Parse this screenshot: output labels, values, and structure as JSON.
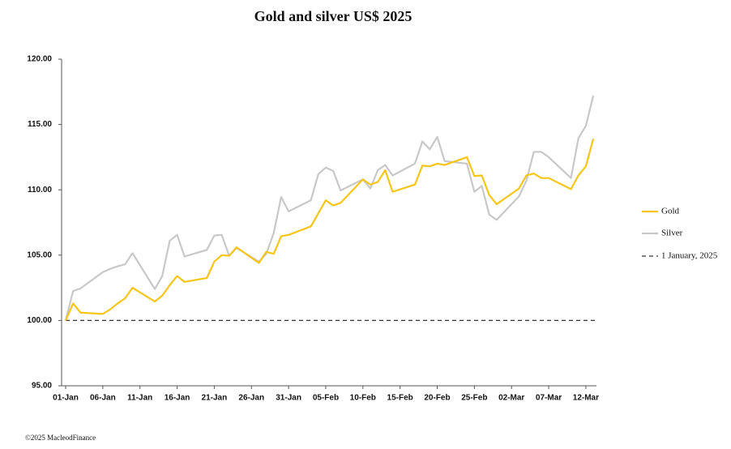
{
  "chart_data": {
    "type": "line",
    "title": "Gold and silver  US$ 2025",
    "footer": "©2025 MacleodFinance",
    "x": [
      0,
      1,
      2,
      5,
      6,
      7,
      8,
      9,
      12,
      13,
      14,
      15,
      16,
      19,
      20,
      21,
      22,
      23,
      26,
      27,
      28,
      29,
      30,
      33,
      34,
      35,
      36,
      37,
      40,
      41,
      42,
      43,
      44,
      47,
      48,
      49,
      50,
      51,
      54,
      55,
      56,
      57,
      58,
      61,
      62,
      63,
      64,
      65,
      68,
      69,
      70,
      71
    ],
    "series": [
      {
        "name": "Gold",
        "color": "#f5c518",
        "values": [
          100,
          101.3,
          100.6,
          100.5,
          100.85,
          101.3,
          101.7,
          102.5,
          101.45,
          101.9,
          102.7,
          103.4,
          102.95,
          103.25,
          104.5,
          105.0,
          104.95,
          105.6,
          104.4,
          105.25,
          105.1,
          106.45,
          106.55,
          107.2,
          108.2,
          109.2,
          108.8,
          109.0,
          110.8,
          110.4,
          110.6,
          111.5,
          109.85,
          110.4,
          111.85,
          111.8,
          112.0,
          111.9,
          112.5,
          111.05,
          111.1,
          109.6,
          108.9,
          110.1,
          111.1,
          111.25,
          110.9,
          110.9,
          110.05,
          111.1,
          111.8,
          113.9
        ]
      },
      {
        "name": "Silver",
        "color": "#c8c8c8",
        "values": [
          100,
          102.25,
          102.45,
          103.7,
          103.95,
          104.15,
          104.3,
          105.15,
          102.4,
          103.4,
          106.1,
          106.55,
          104.9,
          105.4,
          106.5,
          106.55,
          104.95,
          105.55,
          104.5,
          105.1,
          106.7,
          109.45,
          108.35,
          109.2,
          111.2,
          111.7,
          111.45,
          109.95,
          110.8,
          110.1,
          111.5,
          111.9,
          111.1,
          112.0,
          113.7,
          113.1,
          114.05,
          112.2,
          112.0,
          109.85,
          110.3,
          108.1,
          107.7,
          109.5,
          110.7,
          112.9,
          112.9,
          112.5,
          110.9,
          113.95,
          114.9,
          117.2
        ]
      }
    ],
    "reference": {
      "name": "1 January, 2025",
      "value": 100,
      "color": "#333333"
    },
    "xlim": [
      0,
      71.5
    ],
    "xticks": [
      {
        "value": 0,
        "label": "01-Jan"
      },
      {
        "value": 5,
        "label": "06-Jan"
      },
      {
        "value": 10,
        "label": "11-Jan"
      },
      {
        "value": 15,
        "label": "16-Jan"
      },
      {
        "value": 20,
        "label": "21-Jan"
      },
      {
        "value": 25,
        "label": "26-Jan"
      },
      {
        "value": 30,
        "label": "31-Jan"
      },
      {
        "value": 35,
        "label": "05-Feb"
      },
      {
        "value": 40,
        "label": "10-Feb"
      },
      {
        "value": 45,
        "label": "15-Feb"
      },
      {
        "value": 50,
        "label": "20-Feb"
      },
      {
        "value": 55,
        "label": "25-Feb"
      },
      {
        "value": 60,
        "label": "02-Mar"
      },
      {
        "value": 65,
        "label": "07-Mar"
      },
      {
        "value": 70,
        "label": "12-Mar"
      }
    ],
    "ylim": [
      95,
      120
    ],
    "yticks": [
      {
        "value": 95,
        "label": "95.00"
      },
      {
        "value": 100,
        "label": "100.00"
      },
      {
        "value": 105,
        "label": "105.00"
      },
      {
        "value": 110,
        "label": "110.00"
      },
      {
        "value": 115,
        "label": "115.00"
      },
      {
        "value": 120,
        "label": "120.00"
      }
    ],
    "grid": false,
    "legend": "right"
  }
}
